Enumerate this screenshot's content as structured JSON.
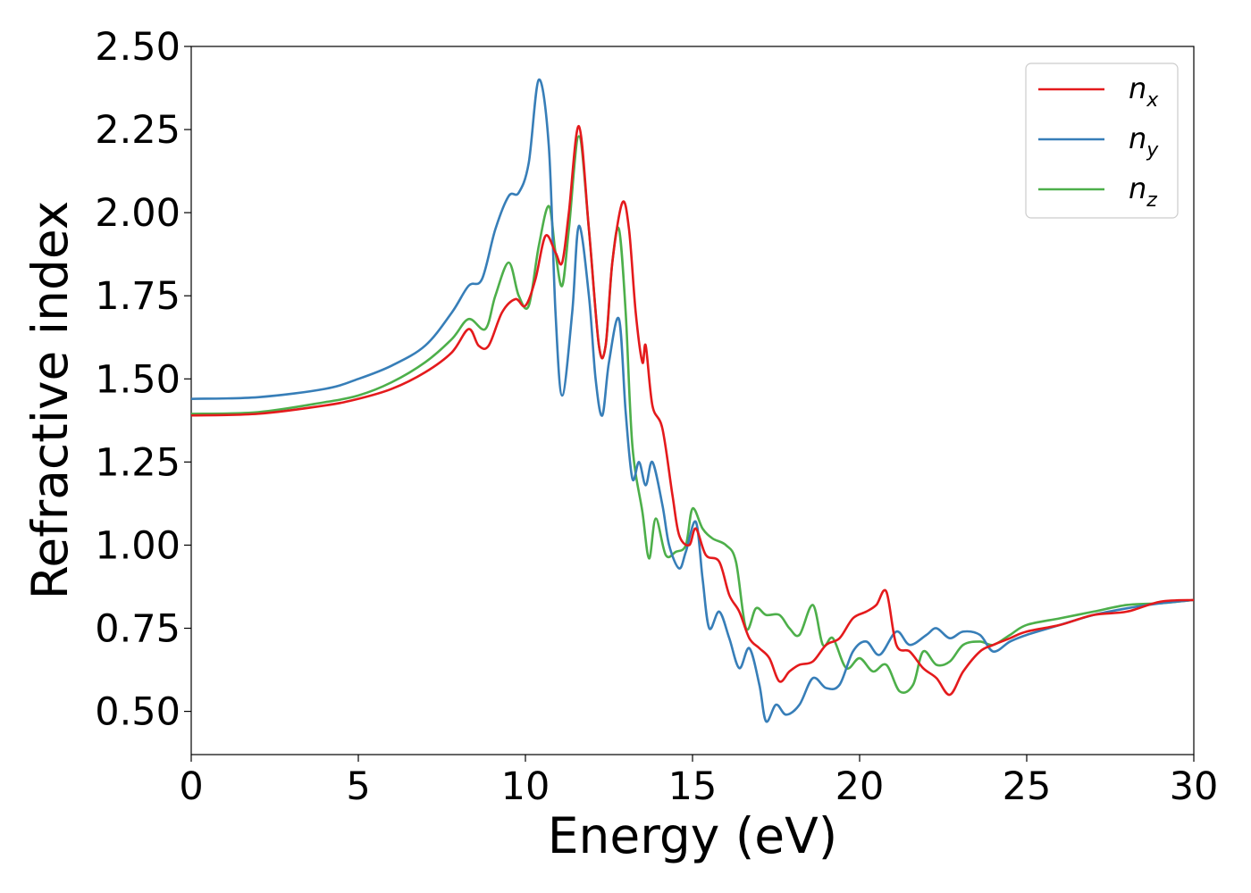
{
  "chart_data": {
    "type": "line",
    "xlabel": "Energy (eV)",
    "ylabel": "Refractive index",
    "xlim": [
      0,
      30
    ],
    "ylim": [
      0.37,
      2.5
    ],
    "xticks": [
      "0",
      "5",
      "10",
      "15",
      "20",
      "25",
      "30"
    ],
    "yticks": [
      "0.50",
      "0.75",
      "1.00",
      "1.25",
      "1.50",
      "1.75",
      "2.00",
      "2.25",
      "2.50"
    ],
    "grid": false,
    "legend_position": "top-right",
    "series": [
      {
        "name": "n_x",
        "label_base": "n",
        "label_sub": "x",
        "color": "#e41a1c",
        "points": [
          [
            0,
            1.39
          ],
          [
            2,
            1.395
          ],
          [
            4,
            1.42
          ],
          [
            5,
            1.44
          ],
          [
            6,
            1.47
          ],
          [
            7,
            1.52
          ],
          [
            7.8,
            1.58
          ],
          [
            8.3,
            1.65
          ],
          [
            8.6,
            1.6
          ],
          [
            8.9,
            1.6
          ],
          [
            9.3,
            1.7
          ],
          [
            9.7,
            1.74
          ],
          [
            10,
            1.72
          ],
          [
            10.3,
            1.8
          ],
          [
            10.6,
            1.93
          ],
          [
            10.9,
            1.88
          ],
          [
            11.1,
            1.85
          ],
          [
            11.3,
            2.0
          ],
          [
            11.6,
            2.26
          ],
          [
            11.9,
            1.95
          ],
          [
            12.2,
            1.6
          ],
          [
            12.4,
            1.6
          ],
          [
            12.6,
            1.85
          ],
          [
            12.9,
            2.03
          ],
          [
            13.1,
            1.95
          ],
          [
            13.3,
            1.7
          ],
          [
            13.5,
            1.55
          ],
          [
            13.6,
            1.6
          ],
          [
            13.8,
            1.42
          ],
          [
            14.1,
            1.35
          ],
          [
            14.4,
            1.15
          ],
          [
            14.6,
            1.03
          ],
          [
            14.9,
            1.0
          ],
          [
            15.1,
            1.05
          ],
          [
            15.4,
            0.97
          ],
          [
            15.8,
            0.95
          ],
          [
            16.1,
            0.85
          ],
          [
            16.4,
            0.8
          ],
          [
            16.7,
            0.72
          ],
          [
            17.0,
            0.69
          ],
          [
            17.3,
            0.66
          ],
          [
            17.6,
            0.59
          ],
          [
            17.9,
            0.62
          ],
          [
            18.2,
            0.64
          ],
          [
            18.6,
            0.65
          ],
          [
            19.0,
            0.7
          ],
          [
            19.4,
            0.72
          ],
          [
            19.8,
            0.78
          ],
          [
            20.2,
            0.8
          ],
          [
            20.5,
            0.82
          ],
          [
            20.8,
            0.86
          ],
          [
            21.1,
            0.7
          ],
          [
            21.5,
            0.68
          ],
          [
            21.9,
            0.63
          ],
          [
            22.3,
            0.6
          ],
          [
            22.7,
            0.55
          ],
          [
            23.1,
            0.62
          ],
          [
            23.6,
            0.68
          ],
          [
            24.0,
            0.7
          ],
          [
            24.5,
            0.72
          ],
          [
            25,
            0.74
          ],
          [
            26,
            0.76
          ],
          [
            27,
            0.79
          ],
          [
            28,
            0.8
          ],
          [
            29,
            0.83
          ],
          [
            30,
            0.835
          ]
        ]
      },
      {
        "name": "n_y",
        "label_base": "n",
        "label_sub": "y",
        "color": "#377eb8",
        "points": [
          [
            0,
            1.44
          ],
          [
            2,
            1.445
          ],
          [
            4,
            1.47
          ],
          [
            5,
            1.5
          ],
          [
            6,
            1.54
          ],
          [
            7,
            1.6
          ],
          [
            7.8,
            1.7
          ],
          [
            8.3,
            1.78
          ],
          [
            8.7,
            1.8
          ],
          [
            9.1,
            1.95
          ],
          [
            9.5,
            2.05
          ],
          [
            9.8,
            2.06
          ],
          [
            10.1,
            2.15
          ],
          [
            10.4,
            2.4
          ],
          [
            10.7,
            2.2
          ],
          [
            10.9,
            1.7
          ],
          [
            11.1,
            1.45
          ],
          [
            11.4,
            1.7
          ],
          [
            11.6,
            1.96
          ],
          [
            11.9,
            1.75
          ],
          [
            12.1,
            1.5
          ],
          [
            12.3,
            1.39
          ],
          [
            12.5,
            1.55
          ],
          [
            12.8,
            1.68
          ],
          [
            13.0,
            1.4
          ],
          [
            13.2,
            1.2
          ],
          [
            13.4,
            1.25
          ],
          [
            13.6,
            1.18
          ],
          [
            13.8,
            1.25
          ],
          [
            14.1,
            1.12
          ],
          [
            14.3,
            1.0
          ],
          [
            14.6,
            0.93
          ],
          [
            14.8,
            0.98
          ],
          [
            15.1,
            1.07
          ],
          [
            15.3,
            0.9
          ],
          [
            15.5,
            0.75
          ],
          [
            15.8,
            0.8
          ],
          [
            16.1,
            0.72
          ],
          [
            16.4,
            0.63
          ],
          [
            16.7,
            0.69
          ],
          [
            17.0,
            0.58
          ],
          [
            17.2,
            0.47
          ],
          [
            17.5,
            0.52
          ],
          [
            17.8,
            0.49
          ],
          [
            18.2,
            0.52
          ],
          [
            18.6,
            0.6
          ],
          [
            19.0,
            0.57
          ],
          [
            19.4,
            0.58
          ],
          [
            19.8,
            0.68
          ],
          [
            20.2,
            0.71
          ],
          [
            20.6,
            0.67
          ],
          [
            21.1,
            0.74
          ],
          [
            21.5,
            0.7
          ],
          [
            22.0,
            0.73
          ],
          [
            22.3,
            0.75
          ],
          [
            22.7,
            0.72
          ],
          [
            23.1,
            0.74
          ],
          [
            23.6,
            0.73
          ],
          [
            24.0,
            0.68
          ],
          [
            24.5,
            0.71
          ],
          [
            25,
            0.73
          ],
          [
            26,
            0.76
          ],
          [
            27,
            0.79
          ],
          [
            28,
            0.81
          ],
          [
            29,
            0.825
          ],
          [
            30,
            0.835
          ]
        ]
      },
      {
        "name": "n_z",
        "label_base": "n",
        "label_sub": "z",
        "color": "#4daf4a",
        "points": [
          [
            0,
            1.395
          ],
          [
            2,
            1.4
          ],
          [
            4,
            1.43
          ],
          [
            5,
            1.45
          ],
          [
            6,
            1.49
          ],
          [
            7,
            1.55
          ],
          [
            7.8,
            1.62
          ],
          [
            8.3,
            1.68
          ],
          [
            8.8,
            1.65
          ],
          [
            9.1,
            1.75
          ],
          [
            9.5,
            1.85
          ],
          [
            9.8,
            1.75
          ],
          [
            10.1,
            1.72
          ],
          [
            10.4,
            1.9
          ],
          [
            10.7,
            2.02
          ],
          [
            10.9,
            1.88
          ],
          [
            11.1,
            1.78
          ],
          [
            11.3,
            1.95
          ],
          [
            11.6,
            2.23
          ],
          [
            11.9,
            1.95
          ],
          [
            12.2,
            1.6
          ],
          [
            12.4,
            1.6
          ],
          [
            12.6,
            1.85
          ],
          [
            12.8,
            1.95
          ],
          [
            13.0,
            1.7
          ],
          [
            13.2,
            1.3
          ],
          [
            13.5,
            1.1
          ],
          [
            13.7,
            0.96
          ],
          [
            13.9,
            1.08
          ],
          [
            14.2,
            0.97
          ],
          [
            14.5,
            0.98
          ],
          [
            14.8,
            1.0
          ],
          [
            15.0,
            1.11
          ],
          [
            15.3,
            1.05
          ],
          [
            15.6,
            1.02
          ],
          [
            16.0,
            1.0
          ],
          [
            16.3,
            0.95
          ],
          [
            16.6,
            0.75
          ],
          [
            16.9,
            0.81
          ],
          [
            17.2,
            0.79
          ],
          [
            17.6,
            0.79
          ],
          [
            17.9,
            0.75
          ],
          [
            18.2,
            0.73
          ],
          [
            18.6,
            0.82
          ],
          [
            18.9,
            0.7
          ],
          [
            19.2,
            0.72
          ],
          [
            19.6,
            0.63
          ],
          [
            20.0,
            0.66
          ],
          [
            20.4,
            0.62
          ],
          [
            20.8,
            0.64
          ],
          [
            21.2,
            0.56
          ],
          [
            21.6,
            0.58
          ],
          [
            21.9,
            0.68
          ],
          [
            22.3,
            0.64
          ],
          [
            22.7,
            0.65
          ],
          [
            23.1,
            0.7
          ],
          [
            23.6,
            0.71
          ],
          [
            24.0,
            0.7
          ],
          [
            24.5,
            0.73
          ],
          [
            25,
            0.76
          ],
          [
            26,
            0.78
          ],
          [
            27,
            0.8
          ],
          [
            28,
            0.82
          ],
          [
            29,
            0.825
          ],
          [
            30,
            0.835
          ]
        ]
      }
    ]
  }
}
